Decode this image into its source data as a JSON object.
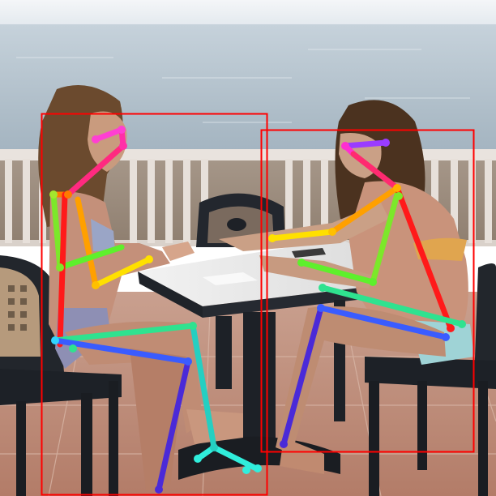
{
  "image": {
    "description_tag": "pose-estimation-overlay",
    "detections": [
      {
        "label": "person",
        "box_color": "#ff0000",
        "keypoints_shown": true
      },
      {
        "label": "person",
        "box_color": "#ff0000",
        "keypoints_shown": true
      }
    ],
    "limb_colors": {
      "head": "#ff3fb7",
      "face": "#a23cff",
      "neck": "#ff0044",
      "torso_left": "#ff2a00",
      "arm_upper": "#ff9c00",
      "arm_lower": "#ffe600",
      "torso_right": "#6ee61a",
      "hip_link": "#2ef56a",
      "hip_to_knee_a": "#23d9b3",
      "hip_to_knee_b": "#2d4cff",
      "shin_a": "#1fc9d4",
      "shin_b": "#4623d8",
      "foot": "#2ff0e6"
    }
  }
}
